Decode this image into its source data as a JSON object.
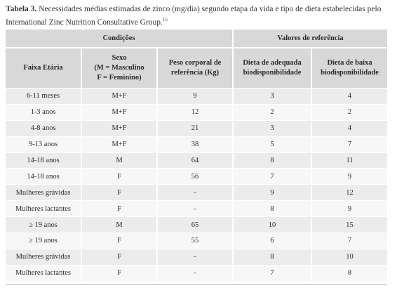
{
  "caption": {
    "label": "Tabela 3.",
    "text": "Necessidades médias estimadas de zinco (mg/dia) segundo etapa da vida e tipo de dieta estabelecidas pelo International Zinc Nutrition Consultative Group.",
    "ref": "15"
  },
  "table": {
    "group_headers": {
      "conditions": "Condições",
      "reference_values": "Valores de referência"
    },
    "column_headers": {
      "age": "Faixa Etária",
      "sex_line1": "Sexo",
      "sex_line2": "(M = Masculino",
      "sex_line3": "F = Feminino)",
      "weight_line1": "Peso corporal de",
      "weight_line2": "referência (Kg)",
      "adequate_line1": "Dieta de adequada",
      "adequate_line2": "biodisponibilidade",
      "low_line1": "Dieta de baixa",
      "low_line2": "biodisponibilidade"
    },
    "rows": [
      {
        "age": "6-11 meses",
        "sex": "M+F",
        "weight": "9",
        "adequate": "3",
        "low": "4"
      },
      {
        "age": "1-3 anos",
        "sex": "M+F",
        "weight": "12",
        "adequate": "2",
        "low": "2"
      },
      {
        "age": "4-8 anos",
        "sex": "M+F",
        "weight": "21",
        "adequate": "3",
        "low": "4"
      },
      {
        "age": "9-13 anos",
        "sex": "M+F",
        "weight": "38",
        "adequate": "5",
        "low": "7"
      },
      {
        "age": "14-18 anos",
        "sex": "M",
        "weight": "64",
        "adequate": "8",
        "low": "11"
      },
      {
        "age": "14-18 anos",
        "sex": "F",
        "weight": "56",
        "adequate": "7",
        "low": "9"
      },
      {
        "age": "Mulheres grávidas",
        "sex": "F",
        "weight": "-",
        "adequate": "9",
        "low": "12"
      },
      {
        "age": "Mulheres lactantes",
        "sex": "F",
        "weight": "-",
        "adequate": "8",
        "low": "9"
      },
      {
        "age": "≥ 19 anos",
        "sex": "M",
        "weight": "65",
        "adequate": "10",
        "low": "15"
      },
      {
        "age": "≥ 19 anos",
        "sex": "F",
        "weight": "55",
        "adequate": "6",
        "low": "7"
      },
      {
        "age": "Mulheres grávidas",
        "sex": "F",
        "weight": "-",
        "adequate": "8",
        "low": "10"
      },
      {
        "age": "Mulheres lactantes",
        "sex": "F",
        "weight": "-",
        "adequate": "7",
        "low": "8"
      }
    ]
  },
  "colors": {
    "header_bg": "#d8d8d8",
    "row_even_bg": "#ececec",
    "row_odd_bg": "#f7f7f7",
    "text": "#2b2b2b"
  }
}
